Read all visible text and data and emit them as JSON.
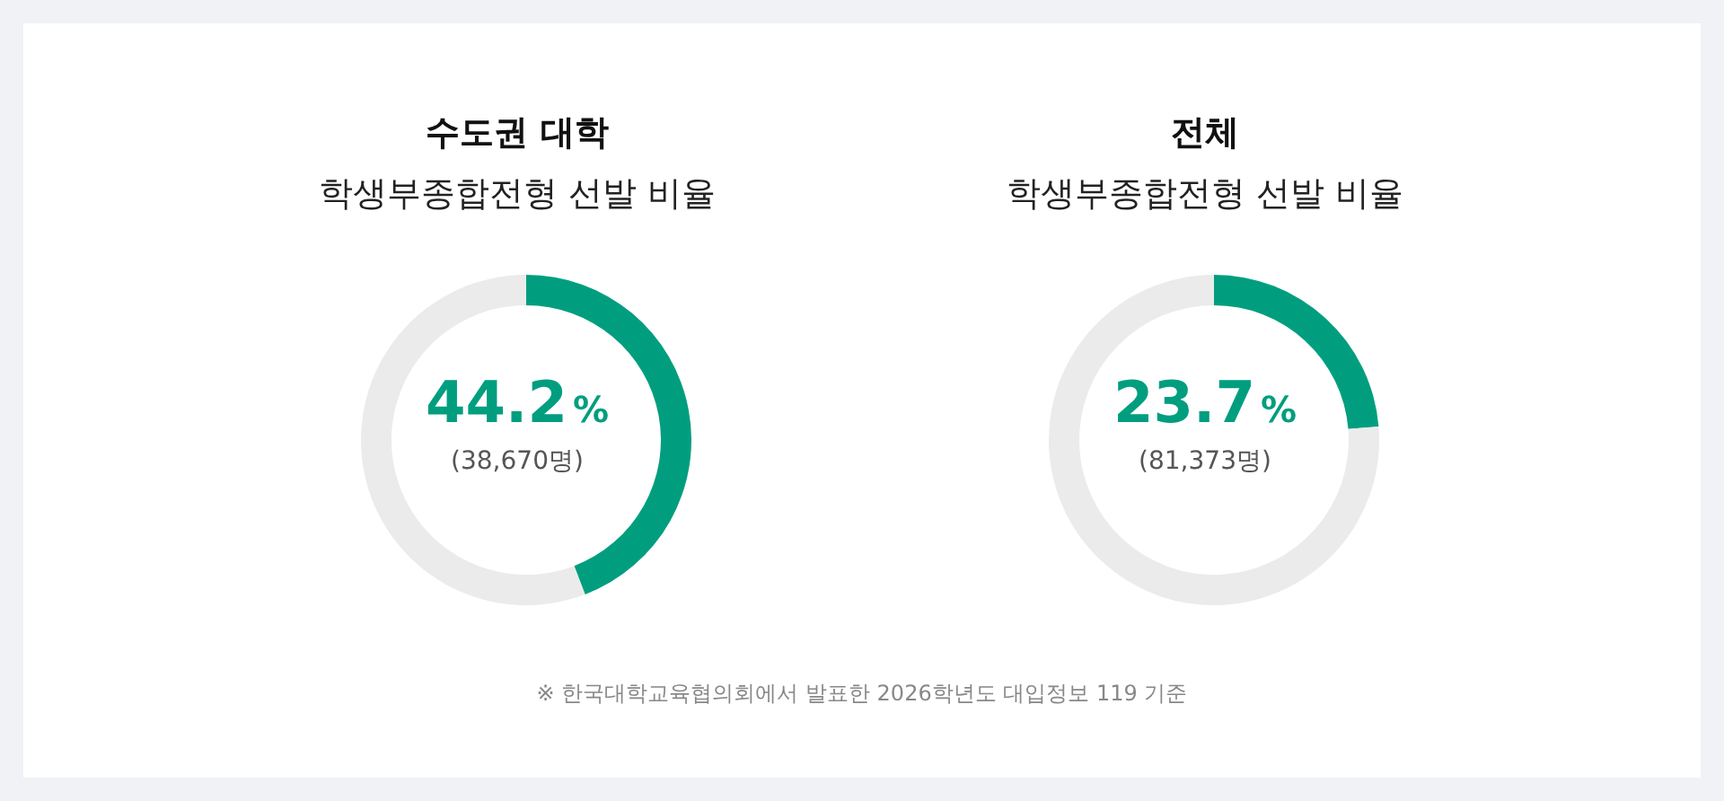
{
  "chart_data": [
    {
      "type": "donut",
      "title": "수도권 대학",
      "subtitle": "학생부종합전형 선발 비율",
      "categories": [
        null,
        null
      ],
      "values": [
        44.2,
        55.8
      ],
      "colors": [
        "#009e7f",
        "#ebebeb"
      ],
      "value_labels": [
        "44.2%",
        null
      ],
      "annotations": [
        "(38,670명)"
      ]
    },
    {
      "type": "donut",
      "title": "전체",
      "subtitle": "학생부종합전형 선발 비율",
      "categories": [
        null,
        null
      ],
      "values": [
        23.7,
        76.3
      ],
      "colors": [
        "#009e7f",
        "#ebebeb"
      ],
      "value_labels": [
        "23.7%",
        null
      ],
      "annotations": [
        "(81,373명)",
        "※ 한국대학교육협의회에서 발표한 2026학년도 대입정보 119 기준"
      ]
    }
  ]
}
